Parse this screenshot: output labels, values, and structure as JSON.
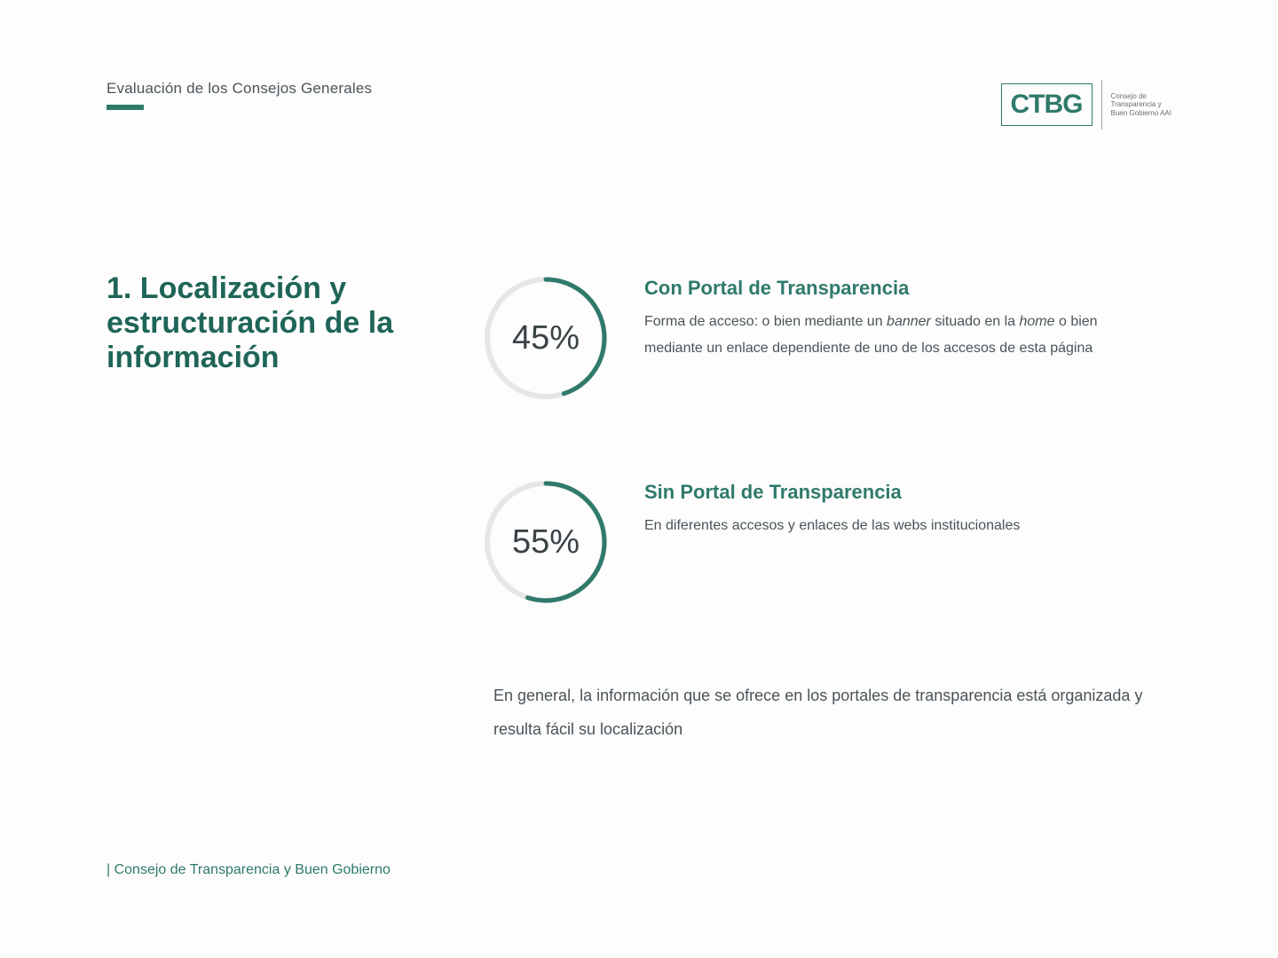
{
  "header": {
    "subtitle": "Evaluación de los Consejos Generales",
    "underline_color": "#2f7a6b"
  },
  "logo": {
    "text": "CTBG",
    "caption_line1": "Consejo de",
    "caption_line2": "Transparencia y",
    "caption_line3": "Buen Gobierno AAI",
    "border_color": "#2f7a6b",
    "text_color": "#2f7a6b"
  },
  "section": {
    "title": "1. Localización y estructuración de la información",
    "title_color": "#1f6558",
    "title_fontsize": 34
  },
  "stats": [
    {
      "pct": 45,
      "label": "45%",
      "title": "Con Portal de Transparencia",
      "desc_pre": "Forma de acceso: o bien mediante un ",
      "desc_em1": "banner",
      "desc_mid": " situado en la ",
      "desc_em2": "home",
      "desc_post": " o bien mediante un enlace dependiente de uno de los accesos de esta página",
      "arc_color": "#2f7a6b",
      "track_color": "#e6e6e6",
      "stroke_width": 5,
      "track_width": 6,
      "radius": 66,
      "size": 150,
      "label_fontsize": 38,
      "rotation_deg": -90
    },
    {
      "pct": 55,
      "label": "55%",
      "title": "Sin Portal de Transparencia",
      "desc": "En diferentes accesos y enlaces de las webs institucionales",
      "arc_color": "#2f7a6b",
      "track_color": "#e6e6e6",
      "stroke_width": 5,
      "track_width": 6,
      "radius": 66,
      "size": 150,
      "label_fontsize": 38,
      "rotation_deg": -90
    }
  ],
  "summary": "En general, la información que se ofrece en los portales de transparencia está organizada y resulta fácil su localización",
  "footer": {
    "text": "| Consejo de Transparencia y Buen Gobierno",
    "color": "#2f7a6b"
  },
  "colors": {
    "background": "#fdfdfd",
    "body_text": "#4a5459"
  }
}
